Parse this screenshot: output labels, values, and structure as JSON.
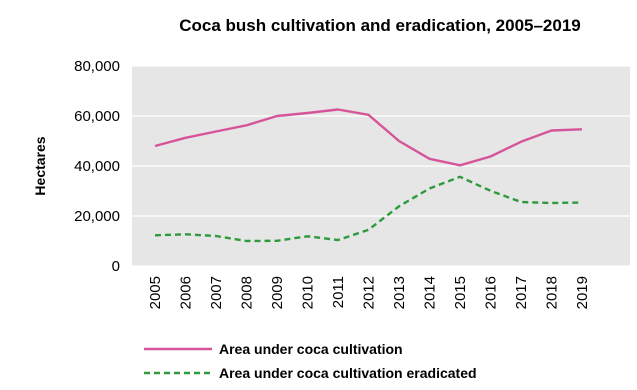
{
  "chart_data": {
    "type": "line",
    "title": "Coca bush cultivation and eradication, 2005–2019",
    "ylabel": "Hectares",
    "xlabel": "",
    "ylim": [
      0,
      80000
    ],
    "yticks": [
      "0",
      "20,000",
      "40,000",
      "60,000",
      "80,000"
    ],
    "ytick_values": [
      0,
      20000,
      40000,
      60000,
      80000
    ],
    "categories": [
      "2005",
      "2006",
      "2007",
      "2008",
      "2009",
      "2010",
      "2011",
      "2012",
      "2013",
      "2014",
      "2015",
      "2016",
      "2017",
      "2018",
      "2019"
    ],
    "grid": "horizontal",
    "background": "#e6e6e6",
    "legend_position": "bottom",
    "series": [
      {
        "name": "Area under coca cultivation",
        "color": "#d6559a",
        "style": "solid",
        "values": [
          48000,
          51300,
          53800,
          56300,
          60000,
          61200,
          62600,
          60500,
          50000,
          42900,
          40300,
          43800,
          49700,
          54200,
          54700
        ]
      },
      {
        "name": "Area under coca cultivation eradicated",
        "color": "#2e9a3c",
        "style": "dashed",
        "values": [
          12300,
          12700,
          12000,
          10000,
          10100,
          11900,
          10400,
          14500,
          23900,
          31000,
          35700,
          30100,
          25600,
          25200,
          25400
        ]
      }
    ]
  }
}
